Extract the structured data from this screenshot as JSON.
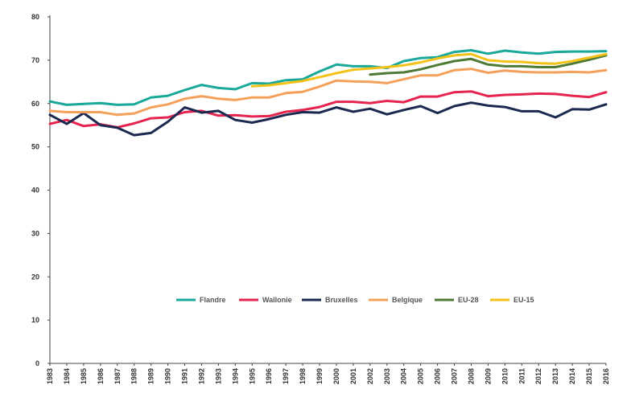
{
  "chart_data": {
    "type": "line",
    "title": "",
    "xlabel": "",
    "ylabel": "",
    "ylim": [
      0,
      80
    ],
    "yticks": [
      "0",
      "10",
      "20",
      "30",
      "40",
      "50",
      "60",
      "70",
      "80"
    ],
    "grid": false,
    "legend_position": "center",
    "categories": [
      "1983",
      "1984",
      "1985",
      "1986",
      "1987",
      "1988",
      "1989",
      "1990",
      "1991",
      "1992",
      "1993",
      "1994",
      "1995",
      "1996",
      "1997",
      "1998",
      "1999",
      "2000",
      "2001",
      "2002",
      "2003",
      "2004",
      "2005",
      "2006",
      "2007",
      "2008",
      "2009",
      "2010",
      "2011",
      "2012",
      "2013",
      "2014",
      "2015",
      "2016"
    ],
    "series": [
      {
        "name": "Flandre",
        "color": "#1aa89a",
        "values": [
          60.5,
          59.7,
          59.9,
          60.1,
          59.7,
          59.8,
          61.4,
          61.8,
          63.1,
          64.3,
          63.6,
          63.3,
          64.7,
          64.6,
          65.4,
          65.6,
          67.4,
          69.0,
          68.6,
          68.6,
          68.2,
          69.8,
          70.5,
          70.7,
          71.9,
          72.3,
          71.5,
          72.2,
          71.8,
          71.5,
          71.9,
          72.0,
          72.0,
          72.1
        ]
      },
      {
        "name": "Wallonie",
        "color": "#e5254f",
        "values": [
          55.3,
          56.2,
          54.8,
          55.2,
          54.5,
          55.4,
          56.6,
          56.8,
          58.0,
          58.3,
          57.2,
          57.3,
          57.0,
          57.1,
          58.1,
          58.5,
          59.2,
          60.4,
          60.4,
          60.1,
          60.6,
          60.3,
          61.6,
          61.6,
          62.6,
          62.8,
          61.7,
          62.0,
          62.1,
          62.3,
          62.2,
          61.8,
          61.5,
          62.6
        ]
      },
      {
        "name": "Bruxelles",
        "color": "#1b2850",
        "values": [
          57.4,
          55.3,
          57.8,
          55.0,
          54.4,
          52.7,
          53.2,
          55.8,
          59.1,
          57.9,
          58.3,
          56.2,
          55.6,
          56.4,
          57.4,
          58.0,
          57.9,
          59.1,
          58.1,
          58.8,
          57.5,
          58.5,
          59.4,
          57.8,
          59.4,
          60.2,
          59.5,
          59.2,
          58.2,
          58.2,
          56.8,
          58.7,
          58.6,
          59.8
        ]
      },
      {
        "name": "Belgique",
        "color": "#f5a05a",
        "values": [
          58.3,
          58.0,
          58.0,
          58.0,
          57.4,
          57.7,
          59.1,
          59.8,
          61.1,
          61.7,
          61.1,
          60.8,
          61.4,
          61.4,
          62.4,
          62.7,
          63.9,
          65.3,
          65.1,
          65.0,
          64.7,
          65.6,
          66.5,
          66.5,
          67.7,
          68.0,
          67.1,
          67.6,
          67.3,
          67.2,
          67.2,
          67.3,
          67.2,
          67.7
        ]
      },
      {
        "name": "EU-28",
        "color": "#4e7a35",
        "values": [
          null,
          null,
          null,
          null,
          null,
          null,
          null,
          null,
          null,
          null,
          null,
          null,
          null,
          null,
          null,
          null,
          null,
          null,
          null,
          66.7,
          67.0,
          67.2,
          67.9,
          68.9,
          69.8,
          70.3,
          69.0,
          68.6,
          68.6,
          68.4,
          68.4,
          69.2,
          70.1,
          71.1
        ]
      },
      {
        "name": "EU-15",
        "color": "#f2c218",
        "values": [
          null,
          null,
          null,
          null,
          null,
          null,
          null,
          null,
          null,
          null,
          null,
          null,
          64.0,
          64.2,
          64.7,
          65.2,
          66.1,
          67.0,
          67.8,
          68.1,
          68.4,
          68.8,
          69.5,
          70.4,
          71.1,
          71.4,
          70.0,
          69.7,
          69.6,
          69.3,
          69.2,
          69.8,
          70.6,
          71.4
        ]
      }
    ]
  }
}
